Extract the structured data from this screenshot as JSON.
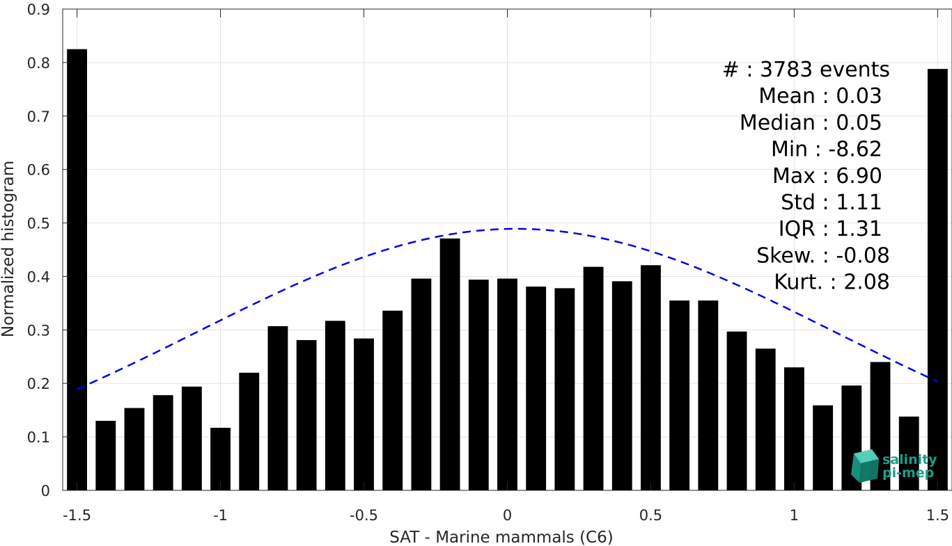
{
  "chart_data": {
    "type": "bar",
    "xlabel": "SAT - Marine mammals (C6)",
    "ylabel": "Normalized histogram",
    "xlim": [
      -1.55,
      1.55
    ],
    "ylim": [
      0,
      0.9
    ],
    "grid": true,
    "xticks": [
      -1.5,
      -1,
      -0.5,
      0,
      0.5,
      1,
      1.5
    ],
    "xtick_labels": [
      "-1.5",
      "-1",
      "-0.5",
      "0",
      "0.5",
      "1",
      "1.5"
    ],
    "yticks": [
      0,
      0.1,
      0.2,
      0.3,
      0.4,
      0.5,
      0.6,
      0.7,
      0.8,
      0.9
    ],
    "ytick_labels": [
      "0",
      "0.1",
      "0.2",
      "0.3",
      "0.4",
      "0.5",
      "0.6",
      "0.7",
      "0.8",
      "0.9"
    ],
    "bar_width": 0.07,
    "bar_color": "#000000",
    "x": [
      -1.5,
      -1.4,
      -1.3,
      -1.2,
      -1.1,
      -1.0,
      -0.9,
      -0.8,
      -0.7,
      -0.6,
      -0.5,
      -0.4,
      -0.3,
      -0.2,
      -0.1,
      0.0,
      0.1,
      0.2,
      0.3,
      0.4,
      0.5,
      0.6,
      0.7,
      0.8,
      0.9,
      1.0,
      1.1,
      1.2,
      1.3,
      1.4,
      1.5
    ],
    "values": [
      0.825,
      0.13,
      0.154,
      0.178,
      0.194,
      0.117,
      0.22,
      0.307,
      0.281,
      0.317,
      0.284,
      0.336,
      0.396,
      0.471,
      0.394,
      0.396,
      0.381,
      0.378,
      0.418,
      0.391,
      0.421,
      0.355,
      0.355,
      0.297,
      0.265,
      0.23,
      0.159,
      0.196,
      0.24,
      0.138,
      0.788
    ],
    "fit": {
      "type": "gaussian",
      "style": "dashed",
      "color": "#0000ee",
      "x_range": [
        -1.5,
        1.5
      ],
      "mean": 0.03,
      "std": 1.11,
      "peak": 0.489
    },
    "annotation": {
      "position": "top-right",
      "lines": [
        "#  : 3783 events",
        "Mean : 0.03",
        "Median : 0.05",
        "Min : -8.62",
        "Max : 6.90",
        "Std : 1.11",
        "IQR : 1.31",
        "Skew. : -0.08",
        "Kurt. : 2.08"
      ]
    }
  },
  "logo": {
    "line1": "salinity",
    "line2": "pi-mep",
    "icon": "cube-logo-icon",
    "color": "#1a9f8a"
  }
}
